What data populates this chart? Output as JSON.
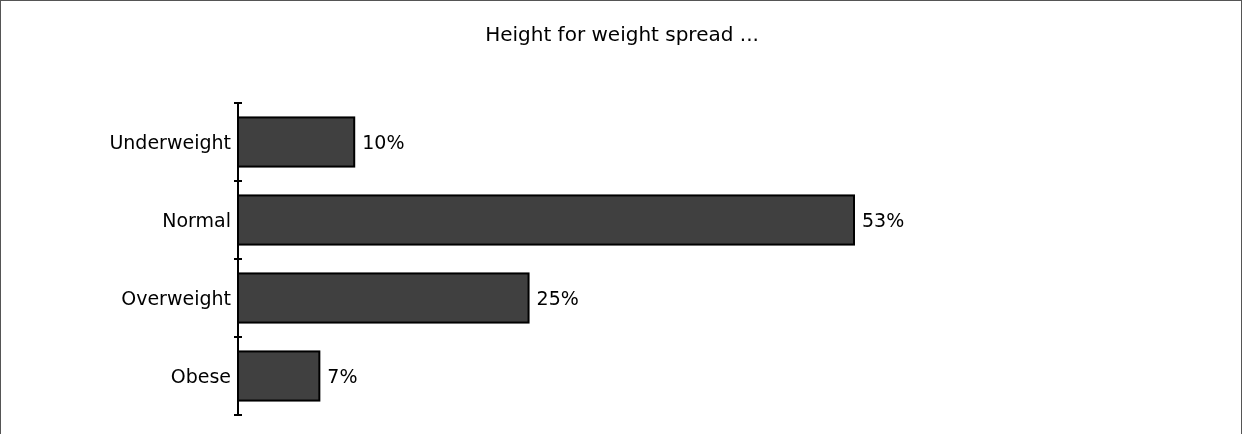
{
  "chart_data": {
    "type": "bar",
    "orientation": "horizontal",
    "title": "Height for weight spread ...",
    "categories": [
      "Underweight",
      "Normal",
      "Overweight",
      "Obese"
    ],
    "values": [
      10,
      53,
      25,
      7
    ],
    "value_labels": [
      "10%",
      "53%",
      "25%",
      "7%"
    ],
    "color": "#404040"
  }
}
